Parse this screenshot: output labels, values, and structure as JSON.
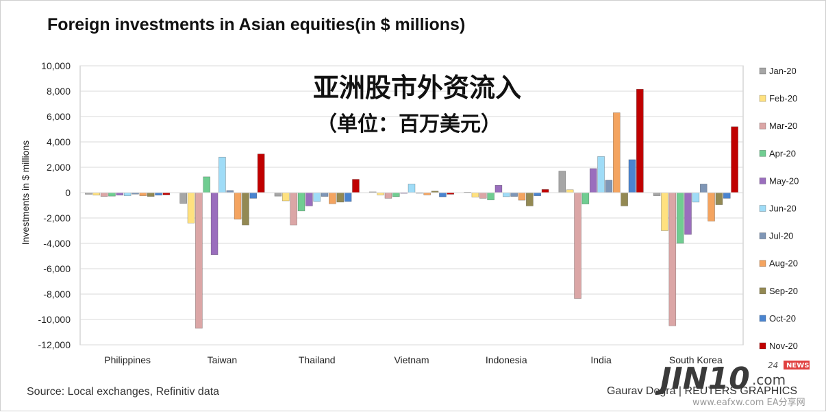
{
  "chart_data": {
    "type": "bar",
    "title": "Foreign investments in Asian equities(in $ millions)",
    "overlay_title": "亚洲股市外资流入",
    "overlay_subtitle": "（单位：百万美元）",
    "ylabel": "Investments in $ millions",
    "ylim": [
      -12000,
      10000
    ],
    "yticks": [
      "10,000",
      "8,000",
      "6,000",
      "4,000",
      "2,000",
      "0",
      "-2,000",
      "-4,000",
      "-6,000",
      "-8,000",
      "-10,000",
      "-12,000"
    ],
    "ytick_values": [
      10000,
      8000,
      6000,
      4000,
      2000,
      0,
      -2000,
      -4000,
      -6000,
      -8000,
      -10000,
      -12000
    ],
    "grid": true,
    "legend_position": "right",
    "categories": [
      "Philippines",
      "Taiwan",
      "Thailand",
      "Vietnam",
      "Indonesia",
      "India",
      "South Korea"
    ],
    "series": [
      {
        "name": "Jan-20",
        "color": "#a6a6a6",
        "values": [
          -130,
          -850,
          -280,
          60,
          40,
          1700,
          -250
        ]
      },
      {
        "name": "Feb-20",
        "color": "#ffe17f",
        "values": [
          -200,
          -2400,
          -650,
          -180,
          -350,
          230,
          -3000
        ]
      },
      {
        "name": "Mar-20",
        "color": "#dba6a6",
        "values": [
          -300,
          -10700,
          -2550,
          -450,
          -450,
          -8350,
          -10500
        ]
      },
      {
        "name": "Apr-20",
        "color": "#70cd91",
        "values": [
          -280,
          1250,
          -1450,
          -320,
          -580,
          -900,
          -4000
        ]
      },
      {
        "name": "May-20",
        "color": "#9a6ebd",
        "values": [
          -200,
          -4900,
          -1050,
          -60,
          580,
          1900,
          -3300
        ]
      },
      {
        "name": "Jun-20",
        "color": "#9fdcf7",
        "values": [
          -250,
          2800,
          -700,
          680,
          -320,
          2850,
          -750
        ]
      },
      {
        "name": "Jul-20",
        "color": "#7f96b6",
        "values": [
          -120,
          170,
          -300,
          -50,
          -300,
          980,
          680
        ]
      },
      {
        "name": "Aug-20",
        "color": "#f4a460",
        "values": [
          -250,
          -2100,
          -880,
          -180,
          -600,
          6300,
          -2250
        ]
      },
      {
        "name": "Sep-20",
        "color": "#938953",
        "values": [
          -300,
          -2550,
          -750,
          120,
          -1050,
          -1050,
          -950
        ]
      },
      {
        "name": "Oct-20",
        "color": "#4a84cf",
        "values": [
          -200,
          -450,
          -700,
          -330,
          -250,
          2600,
          -450
        ]
      },
      {
        "name": "Nov-20",
        "color": "#c00000",
        "values": [
          -170,
          3050,
          1050,
          -130,
          250,
          8150,
          5200
        ]
      }
    ]
  },
  "footer": {
    "source": "Source: Local exchanges, Refinitiv data",
    "credit": "Gaurav Dogra | REUTERS GRAPHICS"
  },
  "watermark": {
    "brand": "JIN10",
    "brand_suffix": ".com",
    "tag_24": "24",
    "tag_news": "NEWS",
    "site": "www.eafxw.com   EA分享网"
  }
}
